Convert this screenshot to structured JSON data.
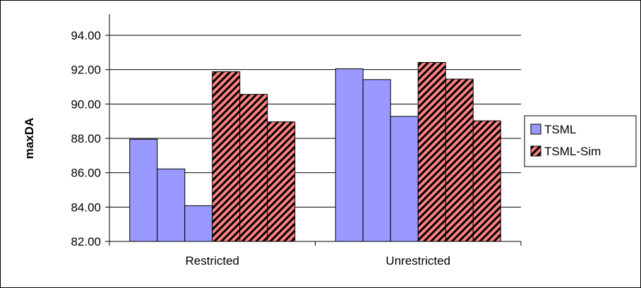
{
  "chart_data": {
    "type": "bar",
    "categories": [
      "Restricted",
      "Unrestricted"
    ],
    "series": [
      {
        "name": "TSML",
        "pattern": "solid",
        "color": "#9999ff",
        "values": [
          [
            87.95,
            86.22,
            84.08
          ],
          [
            92.05,
            91.42,
            89.28
          ]
        ]
      },
      {
        "name": "TSML-Sim",
        "pattern": "diagonal-stripes",
        "color": "#ff8080",
        "stripe_color": "#000000",
        "values": [
          [
            91.88,
            90.56,
            88.96
          ],
          [
            92.42,
            91.45,
            89.02
          ]
        ]
      }
    ],
    "title": "",
    "xlabel": "",
    "ylabel": "maxDA",
    "ylim": [
      82.0,
      94.0
    ],
    "ytick_step": 2.0,
    "ytick_labels": [
      "82.00",
      "84.00",
      "86.00",
      "88.00",
      "90.00",
      "92.00",
      "94.00"
    ],
    "grid": true,
    "legend_position": "right"
  }
}
